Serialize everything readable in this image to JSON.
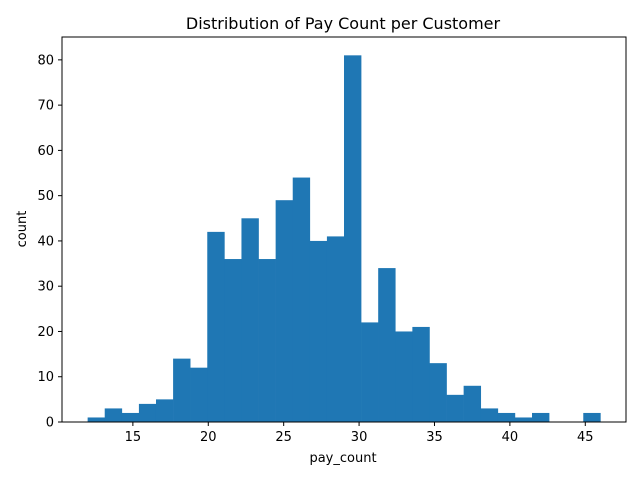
{
  "chart_data": {
    "type": "bar",
    "title": "Distribution of Pay Count per Customer",
    "xlabel": "pay_count",
    "ylabel": "count",
    "xlim": [
      10.3,
      47.7
    ],
    "ylim": [
      0,
      85.05
    ],
    "xticks": [
      15,
      20,
      25,
      30,
      35,
      40,
      45
    ],
    "yticks": [
      0,
      10,
      20,
      30,
      40,
      50,
      60,
      70,
      80
    ],
    "grid": false,
    "bar_color": "#1f77b4",
    "bins": [
      {
        "x0": 12.0,
        "x1": 13.133,
        "count": 1
      },
      {
        "x0": 13.133,
        "x1": 14.267,
        "count": 3
      },
      {
        "x0": 14.267,
        "x1": 15.4,
        "count": 2
      },
      {
        "x0": 15.4,
        "x1": 16.533,
        "count": 4
      },
      {
        "x0": 16.533,
        "x1": 17.667,
        "count": 5
      },
      {
        "x0": 17.667,
        "x1": 18.8,
        "count": 14
      },
      {
        "x0": 18.8,
        "x1": 19.933,
        "count": 12
      },
      {
        "x0": 19.933,
        "x1": 21.067,
        "count": 42
      },
      {
        "x0": 21.067,
        "x1": 22.2,
        "count": 36
      },
      {
        "x0": 22.2,
        "x1": 23.333,
        "count": 45
      },
      {
        "x0": 23.333,
        "x1": 24.467,
        "count": 36
      },
      {
        "x0": 24.467,
        "x1": 25.6,
        "count": 49
      },
      {
        "x0": 25.6,
        "x1": 26.733,
        "count": 54
      },
      {
        "x0": 26.733,
        "x1": 27.867,
        "count": 40
      },
      {
        "x0": 27.867,
        "x1": 29.0,
        "count": 41
      },
      {
        "x0": 29.0,
        "x1": 30.133,
        "count": 81
      },
      {
        "x0": 30.133,
        "x1": 31.267,
        "count": 22
      },
      {
        "x0": 31.267,
        "x1": 32.4,
        "count": 34
      },
      {
        "x0": 32.4,
        "x1": 33.533,
        "count": 20
      },
      {
        "x0": 33.533,
        "x1": 34.667,
        "count": 21
      },
      {
        "x0": 34.667,
        "x1": 35.8,
        "count": 13
      },
      {
        "x0": 35.8,
        "x1": 36.933,
        "count": 6
      },
      {
        "x0": 36.933,
        "x1": 38.067,
        "count": 8
      },
      {
        "x0": 38.067,
        "x1": 39.2,
        "count": 3
      },
      {
        "x0": 39.2,
        "x1": 40.333,
        "count": 2
      },
      {
        "x0": 40.333,
        "x1": 41.467,
        "count": 1
      },
      {
        "x0": 41.467,
        "x1": 42.6,
        "count": 2
      },
      {
        "x0": 42.6,
        "x1": 43.733,
        "count": 0
      },
      {
        "x0": 43.733,
        "x1": 44.867,
        "count": 0
      },
      {
        "x0": 44.867,
        "x1": 46.0,
        "count": 2
      }
    ]
  }
}
